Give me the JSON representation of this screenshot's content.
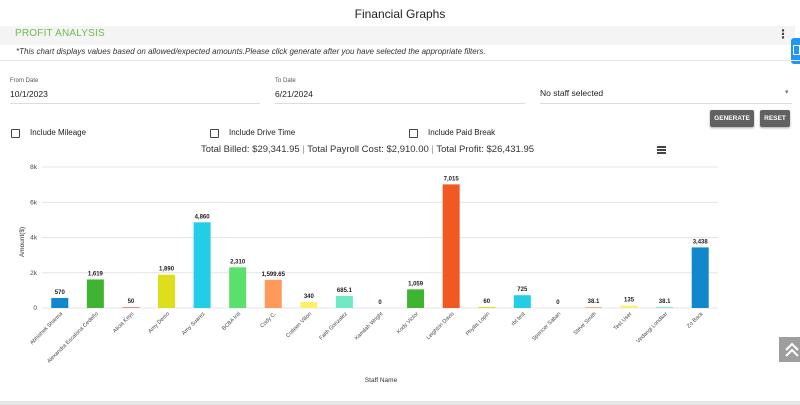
{
  "page_title": "Financial Graphs",
  "section": {
    "title": "PROFIT ANALYSIS",
    "note": "*This chart displays values based on allowed/expected amounts.Please click generate after you have selected the appropriate filters."
  },
  "filters": {
    "from_date_label": "From Date",
    "from_date_value": "10/1/2023",
    "to_date_label": "To Date",
    "to_date_value": "6/21/2024",
    "staff_select_value": "No staff selected"
  },
  "buttons": {
    "generate": "GENERATE",
    "reset": "RESET"
  },
  "checkboxes": {
    "mileage": "Include Mileage",
    "drive_time": "Include Drive Time",
    "paid_break": "Include Paid Break"
  },
  "totals": {
    "billed": "Total Billed: $29,341.95",
    "separator": "|",
    "payroll": "Total Payroll Cost: $2,910.00",
    "profit": "Total Profit: $26,431.95"
  },
  "chart_data": {
    "type": "bar",
    "title": "",
    "xlabel": "Staff Name",
    "ylabel": "Amount($)",
    "ylim": [
      0,
      8000
    ],
    "yticks": [
      0,
      2000,
      4000,
      6000,
      8000
    ],
    "ytick_labels": [
      "0",
      "2k",
      "4k",
      "6k",
      "8k"
    ],
    "grid": "horizontal",
    "categories": [
      "Abhishek Sharma",
      "Alexandra Escalona Cedeño",
      "Alicia Keys",
      "Amy Demo",
      "Amy Suarez",
      "BCBA Intl",
      "Cody C.",
      "Colleen Villon",
      "Faith Gonzalez",
      "Kamilah Wright",
      "Kody Victor",
      "Leighton Davis",
      "Phyllis Lopin",
      "rbt test",
      "Spencer Saban",
      "Steve Smith",
      "Test User",
      "Vedangi Londkar",
      "Zo Back"
    ],
    "values": [
      570,
      1619,
      50,
      1890,
      4860,
      2310,
      1599.65,
      340,
      685.1,
      0,
      1059,
      7015,
      60,
      725,
      0,
      38.1,
      135,
      38.1,
      3438
    ],
    "value_labels": [
      "570",
      "1,619",
      "50",
      "1,890",
      "4,860",
      "2,310",
      "1,599.65",
      "340",
      "685.1",
      "0",
      "1,059",
      "7,015",
      "60",
      "725",
      "0",
      "38.1",
      "135",
      "38.1",
      "3,438"
    ],
    "colors": [
      "#1188cc",
      "#3fb432",
      "#f07a6a",
      "#dede1b",
      "#22cde6",
      "#5ae06b",
      "#ff9a5c",
      "#fff06b",
      "#6fe9c6",
      "#cccccc",
      "#3fb432",
      "#f05a22",
      "#dede1b",
      "#22cde6",
      "#cccccc",
      "#ff9a5c",
      "#fff06b",
      "#6fe9c6",
      "#1188cc"
    ]
  }
}
